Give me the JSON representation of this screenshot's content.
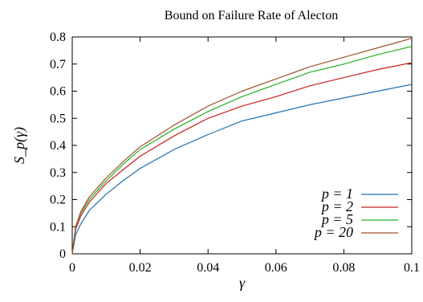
{
  "chart_data": {
    "type": "line",
    "title": "Bound on Failure Rate of Alecton",
    "xlabel": "γ",
    "ylabel": "S_p(γ)",
    "xlim": [
      0,
      0.1
    ],
    "ylim": [
      0,
      0.8
    ],
    "x_ticks": [
      "0",
      "0.02",
      "0.04",
      "0.06",
      "0.08",
      "0.1"
    ],
    "y_ticks": [
      "0",
      "0.1",
      "0.2",
      "0.3",
      "0.4",
      "0.5",
      "0.6",
      "0.7",
      "0.8"
    ],
    "grid": false,
    "legend_position": "bottom-right",
    "series": [
      {
        "name": "p = 1",
        "color": "#1f6fb0",
        "x": [
          0,
          0.001,
          0.0025,
          0.005,
          0.01,
          0.015,
          0.02,
          0.03,
          0.04,
          0.05,
          0.06,
          0.07,
          0.08,
          0.09,
          0.1
        ],
        "y": [
          0,
          0.07,
          0.11,
          0.16,
          0.22,
          0.27,
          0.315,
          0.385,
          0.44,
          0.49,
          0.52,
          0.55,
          0.575,
          0.6,
          0.625
        ]
      },
      {
        "name": "p = 2",
        "color": "#c8201e",
        "x": [
          0,
          0.001,
          0.0025,
          0.005,
          0.01,
          0.015,
          0.02,
          0.03,
          0.04,
          0.05,
          0.06,
          0.07,
          0.08,
          0.09,
          0.1
        ],
        "y": [
          0,
          0.09,
          0.14,
          0.19,
          0.26,
          0.31,
          0.36,
          0.435,
          0.5,
          0.545,
          0.58,
          0.62,
          0.65,
          0.68,
          0.705
        ]
      },
      {
        "name": "p = 5",
        "color": "#22b022",
        "x": [
          0,
          0.001,
          0.0025,
          0.005,
          0.01,
          0.015,
          0.02,
          0.03,
          0.04,
          0.05,
          0.06,
          0.07,
          0.08,
          0.09,
          0.1
        ],
        "y": [
          0,
          0.1,
          0.15,
          0.2,
          0.27,
          0.33,
          0.385,
          0.46,
          0.525,
          0.58,
          0.625,
          0.67,
          0.7,
          0.735,
          0.765
        ]
      },
      {
        "name": "p = 20",
        "color": "#a0522d",
        "x": [
          0,
          0.001,
          0.0025,
          0.005,
          0.01,
          0.015,
          0.02,
          0.03,
          0.04,
          0.05,
          0.06,
          0.07,
          0.08,
          0.09,
          0.1
        ],
        "y": [
          0,
          0.1,
          0.155,
          0.21,
          0.28,
          0.34,
          0.395,
          0.475,
          0.545,
          0.6,
          0.645,
          0.69,
          0.725,
          0.76,
          0.795
        ]
      }
    ]
  }
}
